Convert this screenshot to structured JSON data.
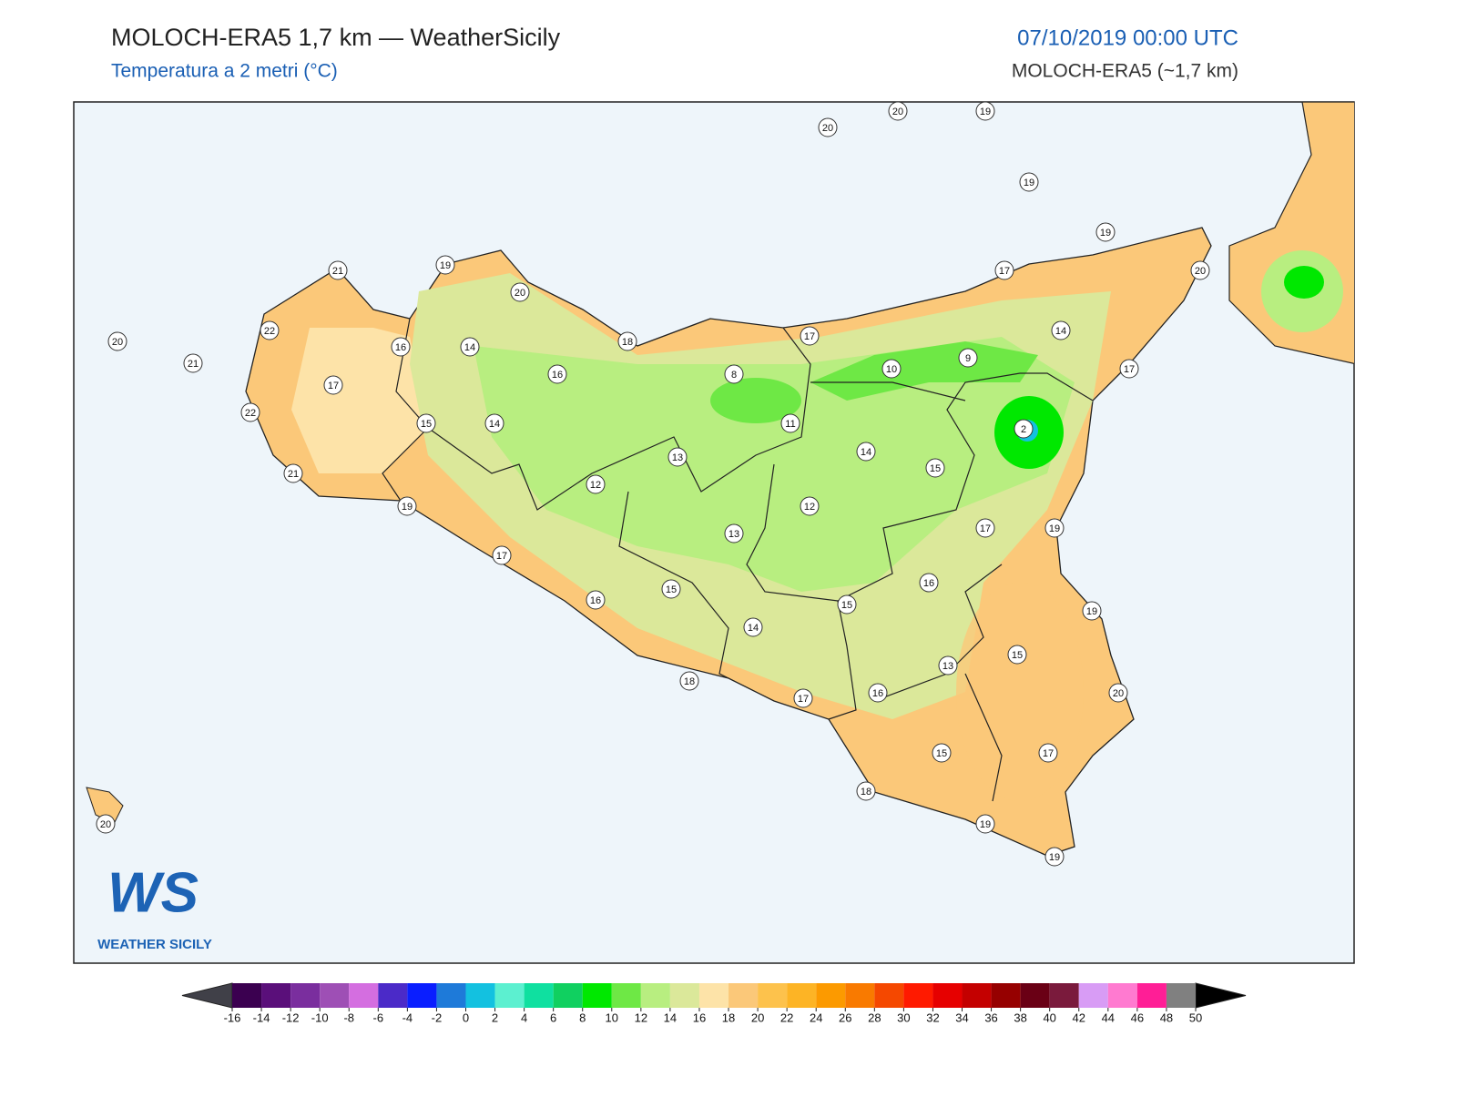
{
  "header": {
    "title": "MOLOCH-ERA5 1,7 km — WeatherSicily",
    "subtitle": "Temperatura a 2 metri (°C)",
    "date": "07/10/2019 00:00 UTC",
    "model": "MOLOCH-ERA5 (~1,7 km)"
  },
  "logo": {
    "mark": "WS",
    "text": "WEATHER SICILY"
  },
  "map": {
    "station_values": [
      20,
      20,
      19,
      19,
      19,
      20,
      17,
      14,
      17,
      17,
      10,
      9,
      2,
      8,
      11,
      14,
      15,
      12,
      17,
      19,
      16,
      15,
      19,
      15,
      13,
      20,
      16,
      17,
      17,
      15,
      18,
      19,
      19,
      18,
      14,
      15,
      16,
      17,
      13,
      12,
      13,
      14,
      16,
      14,
      18,
      20,
      19,
      21,
      16,
      22,
      17,
      15,
      22,
      21,
      19,
      20,
      21,
      20
    ]
  },
  "colorbar": {
    "ticks": [
      -16,
      -14,
      -12,
      -10,
      -8,
      -6,
      -4,
      -2,
      0,
      2,
      4,
      6,
      8,
      10,
      12,
      14,
      16,
      18,
      20,
      22,
      24,
      26,
      28,
      30,
      32,
      34,
      36,
      38,
      40,
      42,
      44,
      46,
      48,
      50
    ],
    "colors": [
      "#3b0050",
      "#5a0f7a",
      "#7a2e9e",
      "#9e4fb5",
      "#d46ee0",
      "#4b2ac8",
      "#0a1eff",
      "#1e7ad9",
      "#13c1e0",
      "#5cf0d0",
      "#0fe0a0",
      "#10d060",
      "#00e800",
      "#6ee845",
      "#b8ee80",
      "#dbe89a",
      "#fde3a8",
      "#fbc879",
      "#fdc24c",
      "#fdb425",
      "#fc9a00",
      "#f97a00",
      "#f54800",
      "#ff1a00",
      "#e60000",
      "#c40000",
      "#960000",
      "#6a0015",
      "#7a1a3c",
      "#d89cf5",
      "#ff7ad0",
      "#ff1e96",
      "#808080",
      "#3a3a3a"
    ],
    "extend_colors": [
      "#404048",
      "#000000"
    ]
  }
}
